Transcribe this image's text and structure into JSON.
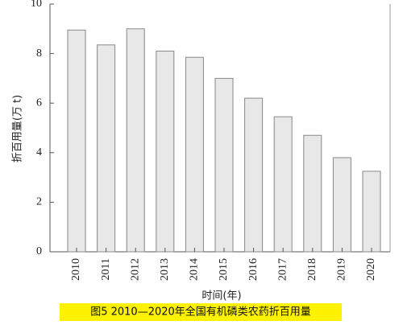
{
  "chart_data": {
    "type": "bar",
    "caption": "图5  2010—2020年全国有机磷类农药折百用量",
    "x_label": "时间(年)",
    "y_label": "折百用量(万 t)",
    "categories": [
      "2010",
      "2011",
      "2012",
      "2013",
      "2014",
      "2015",
      "2016",
      "2017",
      "2018",
      "2019",
      "2020"
    ],
    "values": [
      8.95,
      8.35,
      9.0,
      8.1,
      7.85,
      7.0,
      6.2,
      5.45,
      4.7,
      3.8,
      3.25
    ],
    "color": "#e8e8e8",
    "ylim": [
      0,
      10
    ],
    "yticks": [
      0,
      2,
      4,
      6,
      8,
      10
    ],
    "grid": false
  }
}
